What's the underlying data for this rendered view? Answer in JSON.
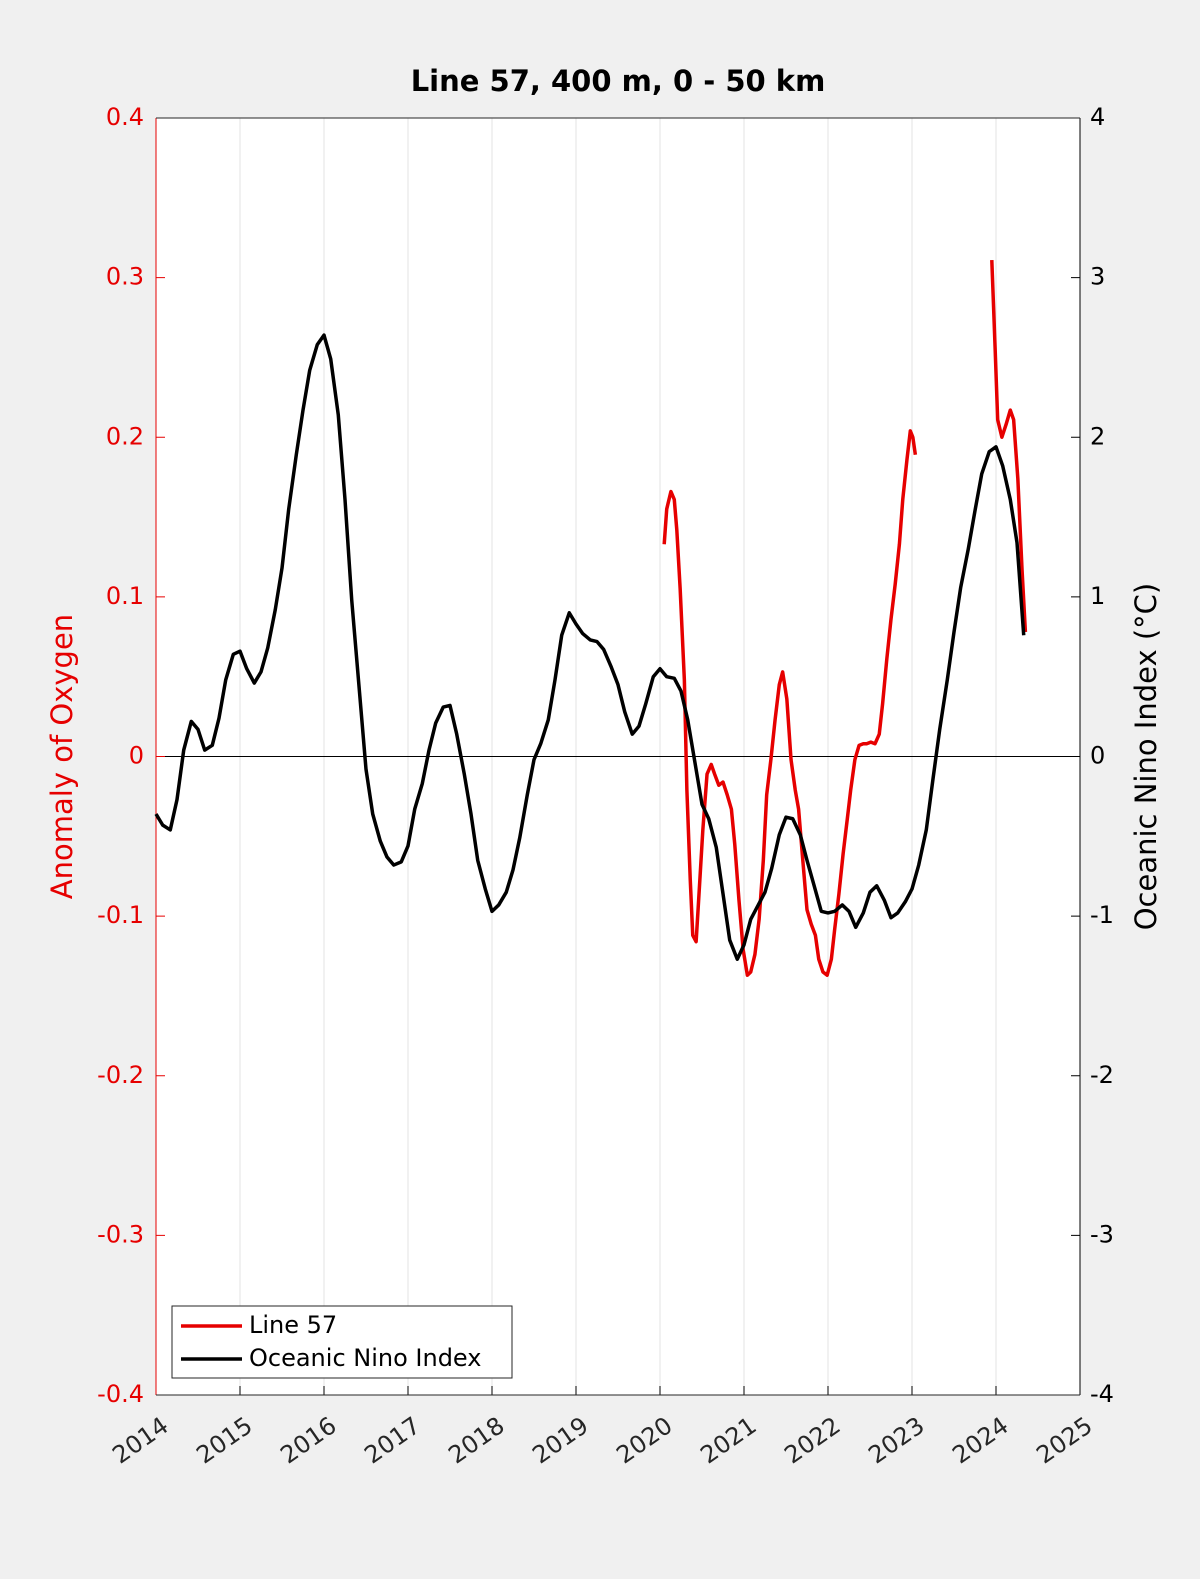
{
  "chart_data": {
    "type": "line",
    "title": "Line 57, 400 m, 0 - 50 km",
    "ylabel": "Anomaly of Oxygen",
    "y2label": "Oceanic Nino Index (°C)",
    "y_axis_color": "#e60000",
    "y2_axis_color": "#000000",
    "xlim": [
      2014,
      2025
    ],
    "xticks": [
      2014,
      2015,
      2016,
      2017,
      2018,
      2019,
      2020,
      2021,
      2022,
      2023,
      2024,
      2025
    ],
    "ylim": [
      -0.4,
      0.4
    ],
    "yticks": [
      -0.4,
      -0.3,
      -0.2,
      -0.1,
      0,
      0.1,
      0.2,
      0.3,
      0.4
    ],
    "y2lim": [
      -4,
      4
    ],
    "y2ticks": [
      -4,
      -3,
      -2,
      -1,
      0,
      1,
      2,
      3,
      4
    ],
    "xgrid": true,
    "zero_line": true,
    "legend": "lower left",
    "series": [
      {
        "name": "Line 57",
        "color": "#e60000",
        "axis": "y",
        "x": [
          2020.05,
          2020.08,
          2020.13,
          2020.17,
          2020.2,
          2020.24,
          2020.29,
          2020.32,
          2020.36,
          2020.39,
          2020.43,
          2020.46,
          2020.51,
          2020.56,
          2020.61,
          2020.65,
          2020.7,
          2020.75,
          2020.8,
          2020.85,
          2020.89,
          2020.94,
          2020.99,
          2021.04,
          2021.08,
          2021.13,
          2021.18,
          2021.23,
          2021.27,
          2021.32,
          2021.37,
          2021.42,
          2021.46,
          2021.51,
          2021.56,
          2021.61,
          2021.65,
          2021.7,
          2021.75,
          2021.8,
          2021.85,
          2021.89,
          2021.94,
          2021.99,
          2022.04,
          2022.08,
          2022.13,
          2022.18,
          2022.23,
          2022.27,
          2022.32,
          2022.37,
          2022.42,
          2022.46,
          2022.51,
          2022.56,
          2022.61,
          2022.65,
          2022.7,
          2022.75,
          2022.8,
          2022.85,
          2022.89,
          2022.94,
          2022.98,
          2023.01,
          2023.04,
          2023.5,
          2023.95,
          2023.99,
          2024.02,
          2024.07,
          2024.12,
          2024.17,
          2024.21,
          2024.26,
          2024.31,
          2024.35
        ],
        "values": [
          0.133,
          0.155,
          0.166,
          0.161,
          0.142,
          0.105,
          0.048,
          -0.021,
          -0.077,
          -0.112,
          -0.116,
          -0.09,
          -0.046,
          -0.011,
          -0.005,
          -0.011,
          -0.018,
          -0.016,
          -0.024,
          -0.033,
          -0.055,
          -0.09,
          -0.121,
          -0.137,
          -0.135,
          -0.124,
          -0.102,
          -0.065,
          -0.024,
          -0.002,
          0.023,
          0.045,
          0.053,
          0.036,
          -0.002,
          -0.021,
          -0.033,
          -0.065,
          -0.096,
          -0.105,
          -0.112,
          -0.127,
          -0.135,
          -0.137,
          -0.127,
          -0.108,
          -0.086,
          -0.061,
          -0.039,
          -0.021,
          -0.002,
          0.007,
          0.008,
          0.008,
          0.009,
          0.008,
          0.014,
          0.033,
          0.061,
          0.086,
          0.108,
          0.133,
          0.161,
          0.186,
          0.204,
          0.2,
          0.189,
          null,
          0.311,
          0.255,
          0.211,
          0.2,
          0.208,
          0.217,
          0.211,
          0.174,
          0.117,
          0.078
        ]
      },
      {
        "name": "Oceanic Nino Index",
        "color": "#000000",
        "axis": "y2",
        "x": [
          2014,
          2014.08,
          2014.17,
          2014.25,
          2014.33,
          2014.42,
          2014.5,
          2014.58,
          2014.67,
          2014.75,
          2014.83,
          2014.92,
          2015,
          2015.08,
          2015.17,
          2015.25,
          2015.33,
          2015.42,
          2015.5,
          2015.58,
          2015.67,
          2015.75,
          2015.83,
          2015.92,
          2016,
          2016.08,
          2016.17,
          2016.25,
          2016.33,
          2016.42,
          2016.5,
          2016.58,
          2016.67,
          2016.75,
          2016.83,
          2016.92,
          2017,
          2017.08,
          2017.17,
          2017.25,
          2017.33,
          2017.42,
          2017.5,
          2017.58,
          2017.67,
          2017.75,
          2017.83,
          2017.92,
          2018,
          2018.08,
          2018.17,
          2018.25,
          2018.33,
          2018.42,
          2018.5,
          2018.58,
          2018.67,
          2018.75,
          2018.83,
          2018.92,
          2019,
          2019.08,
          2019.17,
          2019.25,
          2019.33,
          2019.42,
          2019.5,
          2019.58,
          2019.67,
          2019.75,
          2019.83,
          2019.92,
          2020,
          2020.08,
          2020.17,
          2020.25,
          2020.33,
          2020.42,
          2020.5,
          2020.58,
          2020.67,
          2020.75,
          2020.83,
          2020.92,
          2021,
          2021.08,
          2021.17,
          2021.25,
          2021.33,
          2021.42,
          2021.5,
          2021.58,
          2021.67,
          2021.75,
          2021.83,
          2021.92,
          2022,
          2022.08,
          2022.17,
          2022.25,
          2022.33,
          2022.42,
          2022.5,
          2022.58,
          2022.67,
          2022.75,
          2022.83,
          2022.92,
          2023,
          2023.08,
          2023.17,
          2023.25,
          2023.33,
          2023.42,
          2023.5,
          2023.58,
          2023.67,
          2023.75,
          2023.83,
          2023.92,
          2024,
          2024.08,
          2024.17,
          2024.25,
          2024.33
        ],
        "values": [
          -0.36,
          -0.43,
          -0.46,
          -0.27,
          0.04,
          0.22,
          0.17,
          0.04,
          0.07,
          0.24,
          0.48,
          0.64,
          0.66,
          0.55,
          0.46,
          0.53,
          0.68,
          0.92,
          1.18,
          1.55,
          1.89,
          2.17,
          2.42,
          2.58,
          2.64,
          2.49,
          2.14,
          1.61,
          0.98,
          0.42,
          -0.08,
          -0.36,
          -0.53,
          -0.63,
          -0.68,
          -0.66,
          -0.56,
          -0.33,
          -0.17,
          0.04,
          0.21,
          0.31,
          0.32,
          0.14,
          -0.11,
          -0.36,
          -0.65,
          -0.83,
          -0.97,
          -0.93,
          -0.85,
          -0.71,
          -0.51,
          -0.24,
          -0.02,
          0.08,
          0.23,
          0.48,
          0.76,
          0.9,
          0.83,
          0.77,
          0.73,
          0.72,
          0.67,
          0.56,
          0.45,
          0.28,
          0.14,
          0.19,
          0.33,
          0.5,
          0.55,
          0.5,
          0.49,
          0.41,
          0.23,
          -0.05,
          -0.3,
          -0.39,
          -0.57,
          -0.86,
          -1.15,
          -1.27,
          -1.18,
          -1.02,
          -0.93,
          -0.85,
          -0.7,
          -0.49,
          -0.38,
          -0.39,
          -0.49,
          -0.65,
          -0.8,
          -0.97,
          -0.98,
          -0.97,
          -0.93,
          -0.97,
          -1.07,
          -0.98,
          -0.85,
          -0.81,
          -0.9,
          -1.01,
          -0.98,
          -0.91,
          -0.83,
          -0.68,
          -0.46,
          -0.14,
          0.17,
          0.48,
          0.78,
          1.06,
          1.3,
          1.54,
          1.77,
          1.91,
          1.94,
          1.82,
          1.61,
          1.34,
          0.76
        ]
      }
    ]
  }
}
